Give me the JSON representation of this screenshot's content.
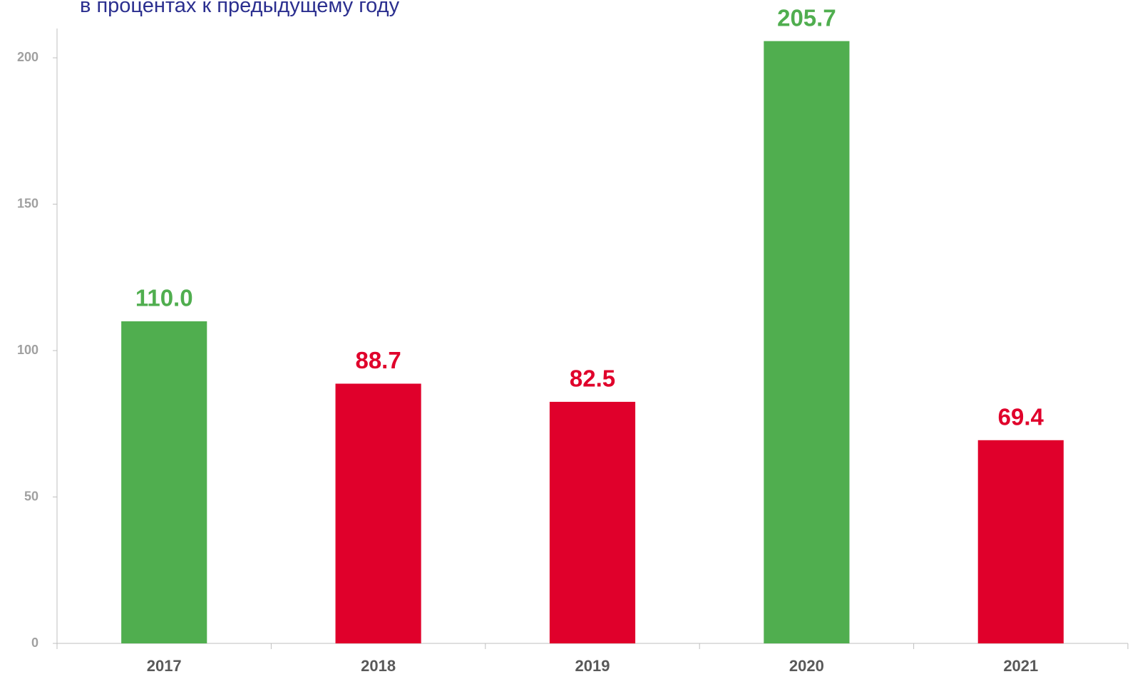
{
  "chart_data": {
    "type": "bar",
    "subtitle": "в процентах к предыдущему году",
    "categories": [
      "2017",
      "2018",
      "2019",
      "2020",
      "2021"
    ],
    "values": [
      110.0,
      88.7,
      82.5,
      205.7,
      69.4
    ],
    "value_labels": [
      "110.0",
      "88.7",
      "82.5",
      "205.7",
      "69.4"
    ],
    "colors": [
      "#50ae4f",
      "#e0002b",
      "#e0002b",
      "#50ae4f",
      "#e0002b"
    ],
    "ylim": [
      0,
      210
    ],
    "yticks": [
      0,
      50,
      100,
      150,
      200
    ],
    "grid": false
  }
}
